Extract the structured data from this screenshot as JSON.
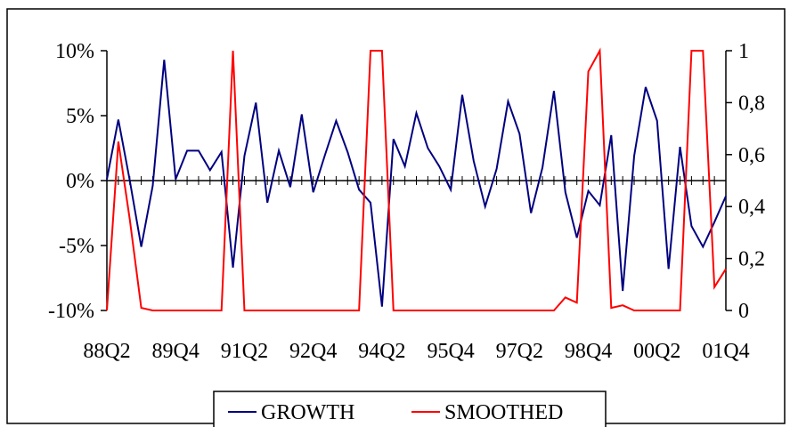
{
  "chart_data": {
    "type": "line",
    "title": "",
    "xlabel": "",
    "ylabel": "",
    "x_tick_labels": [
      "88Q2",
      "89Q4",
      "91Q2",
      "92Q4",
      "94Q2",
      "95Q4",
      "97Q2",
      "98Q4",
      "00Q2",
      "01Q4"
    ],
    "x_tick_index": [
      0,
      6,
      12,
      18,
      24,
      30,
      36,
      42,
      48,
      54
    ],
    "y_left": {
      "ticks": [
        "10%",
        "5%",
        "0%",
        "-5%",
        "-10%"
      ],
      "tick_values": [
        10,
        5,
        0,
        -5,
        -10
      ],
      "range": [
        -10,
        10
      ],
      "unit": "%"
    },
    "y_right": {
      "ticks": [
        "1",
        "0,8",
        "0,6",
        "0,4",
        "0,2",
        "0"
      ],
      "tick_values": [
        1,
        0.8,
        0.6,
        0.4,
        0.2,
        0
      ],
      "range": [
        0,
        1
      ]
    },
    "grid": false,
    "legend_position": "bottom",
    "series": [
      {
        "name": "GROWTH",
        "axis": "left",
        "color": "#000080",
        "values": [
          0.1,
          4.7,
          0.0,
          -5.1,
          -0.4,
          9.3,
          0.1,
          2.3,
          2.3,
          0.8,
          2.2,
          -6.7,
          1.9,
          6.0,
          -1.7,
          2.3,
          -0.5,
          5.1,
          -0.9,
          1.9,
          4.6,
          2.2,
          -0.7,
          -1.7,
          -9.7,
          3.2,
          1.1,
          5.2,
          2.5,
          1.1,
          -0.7,
          6.6,
          1.5,
          -2.0,
          0.9,
          6.1,
          3.6,
          -2.5,
          1.0,
          6.9,
          -0.9,
          -4.4,
          -0.8,
          -1.9,
          3.5,
          -8.5,
          1.9,
          7.2,
          4.6,
          -6.8,
          2.6,
          -3.5,
          -5.1,
          -3.2,
          -1.2
        ]
      },
      {
        "name": "SMOOTHED",
        "axis": "right",
        "color": "#ff0000",
        "values": [
          0.0,
          0.65,
          0.35,
          0.01,
          0.0,
          0.0,
          0.0,
          0.0,
          0.0,
          0.0,
          0.0,
          1.0,
          0.0,
          0.0,
          0.0,
          0.0,
          0.0,
          0.0,
          0.0,
          0.0,
          0.0,
          0.0,
          0.0,
          1.0,
          1.0,
          0.0,
          0.0,
          0.0,
          0.0,
          0.0,
          0.0,
          0.0,
          0.0,
          0.0,
          0.0,
          0.0,
          0.0,
          0.0,
          0.0,
          0.0,
          0.05,
          0.03,
          0.92,
          1.0,
          0.01,
          0.02,
          0.0,
          0.0,
          0.0,
          0.0,
          0.0,
          1.0,
          1.0,
          0.09,
          0.16
        ]
      }
    ]
  }
}
